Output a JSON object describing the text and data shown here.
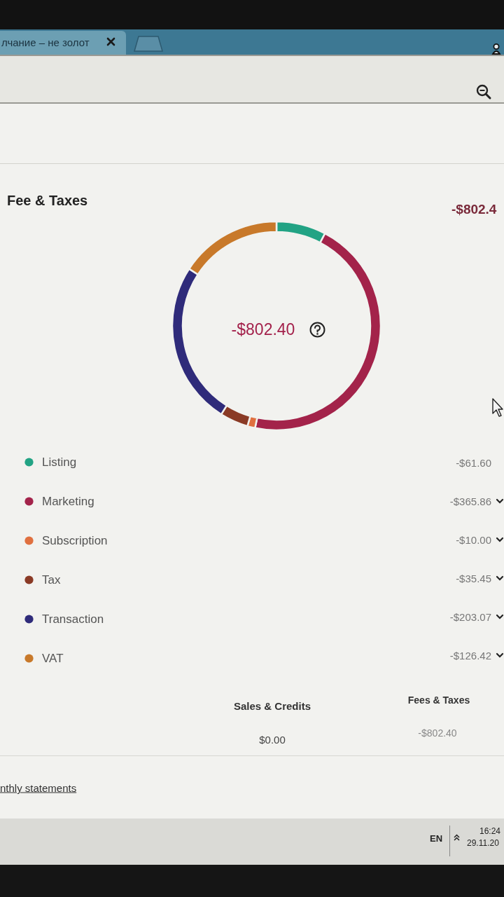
{
  "chart_data": {
    "type": "donut",
    "title": "Fee & Taxes",
    "categories": [
      "Listing",
      "Marketing",
      "Subscription",
      "Tax",
      "Transaction",
      "VAT"
    ],
    "values": [
      7.7,
      45.6,
      1.2,
      4.4,
      25.3,
      15.8
    ],
    "colors": [
      "#22a384",
      "#a3234a",
      "#e0703f",
      "#8a3a25",
      "#2f2b7a",
      "#c8792a"
    ],
    "legend": "bottom left",
    "annotations": [
      "-$802.4",
      "-$802.40",
      "-$61.60",
      "-$365.86",
      "-$10.00",
      "-$35.45",
      "-$203.07",
      "-$126.42",
      "Sales & Credits",
      "$0.00",
      "Fees & Taxes",
      "-$802.40",
      "nthly statements",
      "лчание – не золот",
      "EN",
      "16:24",
      "29.11.20"
    ]
  }
}
